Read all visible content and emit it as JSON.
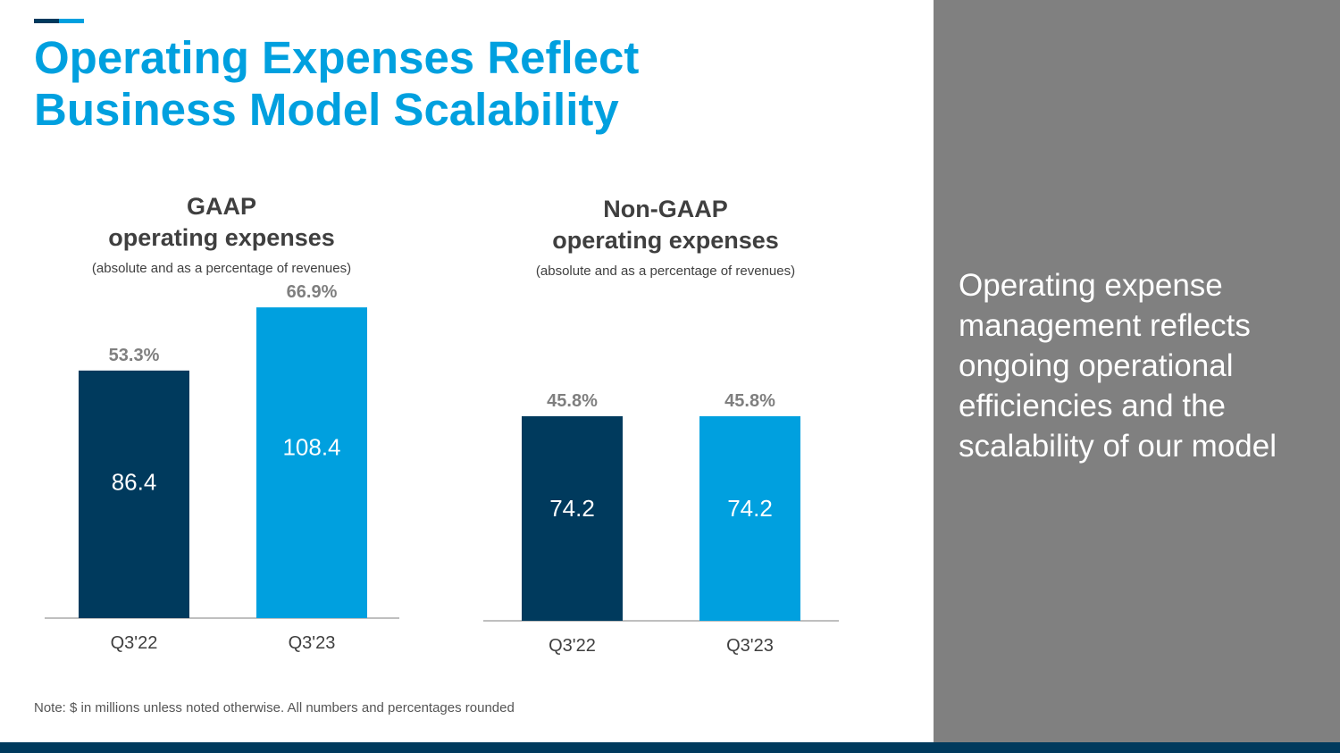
{
  "title": {
    "line1": "Operating Expenses Reflect",
    "line2": "Business Model Scalability"
  },
  "colors": {
    "accent": "#00a0df",
    "dark": "#003a5d",
    "panel": "#808080",
    "text": "#3f3f3f",
    "pct_text": "#7f7f7f"
  },
  "chart_data": [
    {
      "type": "bar",
      "title_line1": "GAAP",
      "title_line2": "operating expenses",
      "subtitle": "(absolute and as a percentage of revenues)",
      "categories": [
        "Q3'22",
        "Q3'23"
      ],
      "values": [
        86.4,
        108.4
      ],
      "value_labels": [
        "86.4",
        "108.4"
      ],
      "percent_labels": [
        "53.3%",
        "66.9%"
      ],
      "percent_values": [
        53.3,
        66.9
      ],
      "ylim": [
        0,
        70
      ],
      "ylabel": "",
      "xlabel": ""
    },
    {
      "type": "bar",
      "title_line1": "Non-GAAP",
      "title_line2": "operating expenses",
      "subtitle": "(absolute and as a percentage of revenues)",
      "categories": [
        "Q3'22",
        "Q3'23"
      ],
      "values": [
        74.2,
        74.2
      ],
      "value_labels": [
        "74.2",
        "74.2"
      ],
      "percent_labels": [
        "45.8%",
        "45.8%"
      ],
      "percent_values": [
        45.8,
        45.8
      ],
      "ylim": [
        0,
        70
      ],
      "ylabel": "",
      "xlabel": ""
    }
  ],
  "note": "Note: $ in millions unless noted otherwise. All numbers and percentages rounded",
  "side_panel": {
    "text": "Operating expense management reflects ongoing operational efficiencies and the scalability of our model"
  }
}
